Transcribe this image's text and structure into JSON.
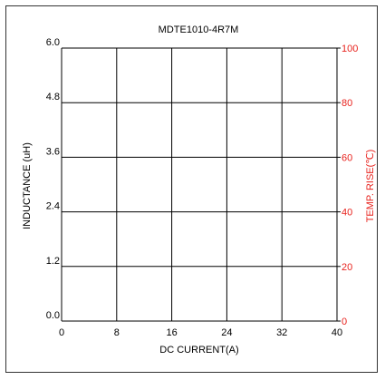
{
  "chart_data": {
    "type": "line",
    "title": "MDTE1010-4R7M",
    "xlabel": "DC CURRENT(A)",
    "ylabel": "INDUCTANCE (uH)",
    "y2label": "TEMP. RISE(℃)",
    "xlim": [
      0,
      40
    ],
    "ylim": [
      0.0,
      6.0
    ],
    "y2lim": [
      0,
      100
    ],
    "x_ticks": [
      "0",
      "8",
      "16",
      "24",
      "32",
      "40"
    ],
    "y_ticks": [
      "0.0",
      "1.2",
      "2.4",
      "3.6",
      "4.8",
      "6.0"
    ],
    "y2_ticks": [
      "0",
      "20",
      "40",
      "60",
      "80",
      "100"
    ],
    "grid": true,
    "series": []
  },
  "colors": {
    "axis": "#000000",
    "text": "#000000",
    "secondary_axis": "#e8231e",
    "frame": "#333333"
  }
}
